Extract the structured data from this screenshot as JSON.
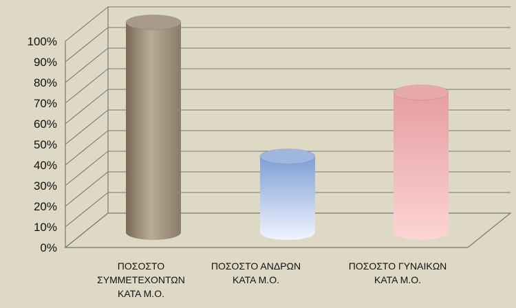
{
  "chart_data": {
    "type": "bar",
    "style": "3d-cylinder",
    "categories": [
      [
        "ΠΟΣΟΣΤΟ",
        "ΣΥΜΜΕΤΕΧΟΝΤΩΝ",
        "ΚΑΤΑ Μ.Ο."
      ],
      [
        "ΠΟΣΟΣΤΟ ΑΝΔΡΩΝ",
        "ΚΑΤΑ Μ.Ο."
      ],
      [
        "ΠΟΣΟΣΤΟ ΓΥΝΑΙΚΩΝ",
        "ΚΑΤΑ Μ.Ο."
      ]
    ],
    "values": [
      100,
      35,
      66
    ],
    "bar_colors": [
      "#a89a88",
      "#9fb6de",
      "#e8a9ab"
    ],
    "ylim": [
      0,
      100
    ],
    "yticks": [
      "0%",
      "10%",
      "20%",
      "30%",
      "40%",
      "50%",
      "60%",
      "70%",
      "80%",
      "90%",
      "100%"
    ],
    "grid": true,
    "legend": "none",
    "title": "",
    "xlabel": "",
    "ylabel": ""
  },
  "colors": {
    "background": "#ddd9c4",
    "gridline": "#777777"
  }
}
